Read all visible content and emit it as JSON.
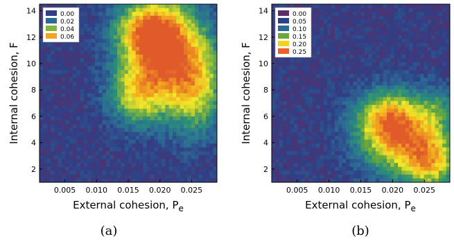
{
  "chart_data": [
    {
      "type": "heatmap",
      "panel_label": "(a)",
      "xlabel": "External cohesion, P",
      "xlabel_sub": "e",
      "ylabel": "Internal cohesion, F",
      "xlim": [
        0.001,
        0.029
      ],
      "ylim": [
        1,
        14.5
      ],
      "xticks": [
        "0.005",
        "0.010",
        "0.015",
        "0.020",
        "0.025"
      ],
      "yticks": [
        "2",
        "4",
        "6",
        "8",
        "10",
        "12",
        "14"
      ],
      "grid": false,
      "legend_position": "top-left",
      "legend": [
        {
          "label": "0.00",
          "color": "#2f3f86"
        },
        {
          "label": "0.02",
          "color": "#2c6a96"
        },
        {
          "label": "0.04",
          "color": "#86b53c"
        },
        {
          "label": "0.06",
          "color": "#f1a51f"
        }
      ],
      "field": {
        "background": 0.0,
        "peak": 0.065,
        "hotspots": [
          {
            "x": 0.021,
            "y": 10.5,
            "amp": 0.06,
            "sx": 0.0045,
            "sy": 2.8
          },
          {
            "x": 0.018,
            "y": 12.5,
            "amp": 0.04,
            "sx": 0.0035,
            "sy": 1.6
          },
          {
            "x": 0.016,
            "y": 7.5,
            "amp": 0.03,
            "sx": 0.003,
            "sy": 1.5
          },
          {
            "x": 0.026,
            "y": 8.0,
            "amp": 0.03,
            "sx": 0.003,
            "sy": 2.5
          }
        ]
      },
      "colormap": [
        "#5a2f6a",
        "#2f3f86",
        "#2c6a96",
        "#2a8f79",
        "#86b53c",
        "#f2e829",
        "#f1a51f",
        "#e05a2a"
      ]
    },
    {
      "type": "heatmap",
      "panel_label": "(b)",
      "xlabel": "External cohesion, P",
      "xlabel_sub": "e",
      "ylabel": "Internal cohesion, F",
      "xlim": [
        0.001,
        0.029
      ],
      "ylim": [
        1,
        14.5
      ],
      "xticks": [
        "0.005",
        "0.010",
        "0.015",
        "0.020",
        "0.025"
      ],
      "yticks": [
        "2",
        "4",
        "6",
        "8",
        "10",
        "12",
        "14"
      ],
      "grid": false,
      "legend_position": "top-left",
      "legend": [
        {
          "label": "0.00",
          "color": "#5a2f6a"
        },
        {
          "label": "0.05",
          "color": "#2f3f86"
        },
        {
          "label": "0.10",
          "color": "#2c6a96"
        },
        {
          "label": "0.15",
          "color": "#6aa83c"
        },
        {
          "label": "0.20",
          "color": "#f2d41f"
        },
        {
          "label": "0.25",
          "color": "#e8602a"
        }
      ],
      "field": {
        "background": 0.0,
        "peak": 0.28,
        "hotspots": [
          {
            "x": 0.021,
            "y": 4.5,
            "amp": 0.22,
            "sx": 0.0045,
            "sy": 2.0
          },
          {
            "x": 0.026,
            "y": 2.5,
            "amp": 0.18,
            "sx": 0.003,
            "sy": 1.5
          },
          {
            "x": 0.019,
            "y": 6.0,
            "amp": 0.12,
            "sx": 0.0035,
            "sy": 1.4
          },
          {
            "x": 0.027,
            "y": 6.5,
            "amp": 0.08,
            "sx": 0.002,
            "sy": 1.2
          }
        ]
      },
      "colormap": [
        "#5a2f6a",
        "#2f3f86",
        "#2c6a96",
        "#2a8f79",
        "#6aa83c",
        "#f2e829",
        "#f1a51f",
        "#e05a2a"
      ]
    }
  ]
}
